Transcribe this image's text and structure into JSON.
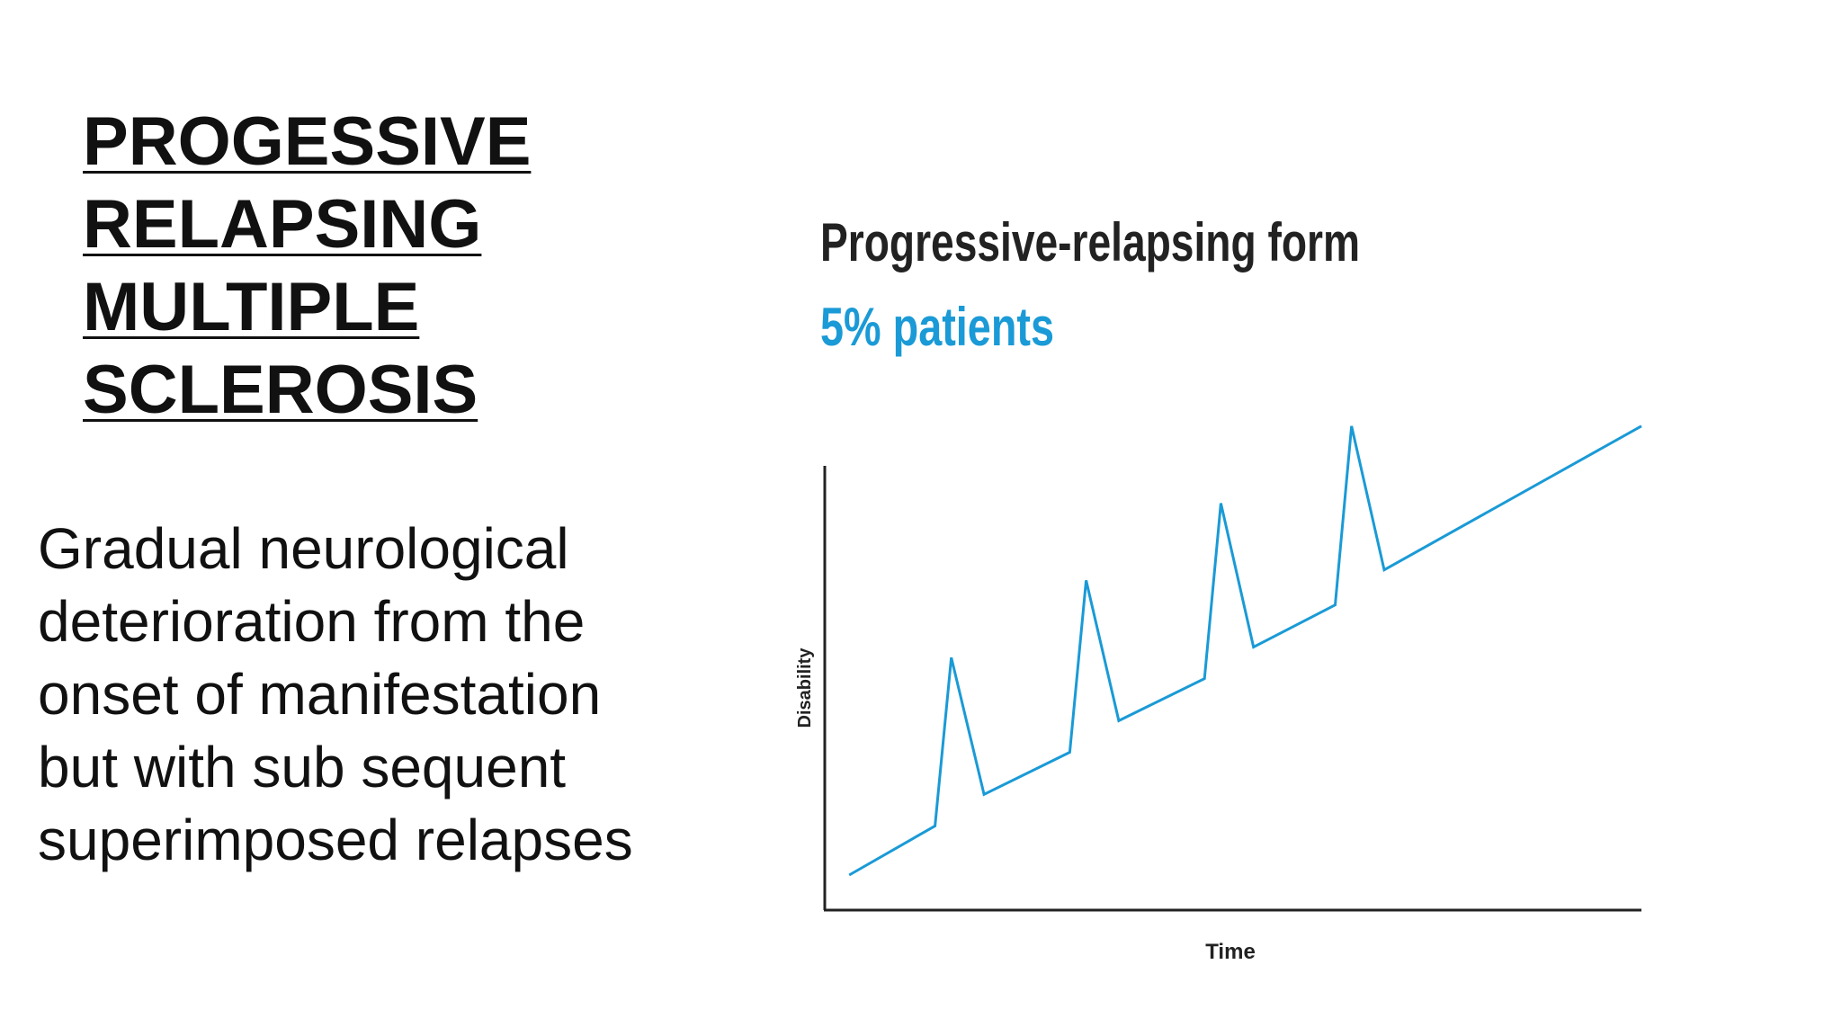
{
  "slide": {
    "title_lines": [
      "PROGESSIVE",
      "RELAPSING",
      "MULTIPLE",
      "SCLEROSIS"
    ],
    "body_lines": [
      "Gradual neurological",
      "deterioration from the",
      "onset of manifestation",
      "but with sub sequent",
      "superimposed relapses"
    ]
  },
  "colors": {
    "title_text": "#111111",
    "figure_title": "#222222",
    "subtitle_accent": "#1a9ad6",
    "line": "#1a9ad6",
    "axis": "#222222"
  },
  "chart_data": {
    "type": "line",
    "title": "Progressive-relapsing form",
    "subtitle": "5% patients",
    "xlabel": "Time",
    "ylabel": "Disability",
    "grid": false,
    "legend": "none",
    "axis_ticks": "none",
    "ylim": [
      0,
      100
    ],
    "xlim": [
      0,
      100
    ],
    "series": [
      {
        "points": [
          [
            3,
            10
          ],
          [
            13.5,
            24
          ],
          [
            15.5,
            72
          ],
          [
            19.5,
            33
          ],
          [
            30,
            45
          ],
          [
            32,
            94
          ],
          [
            36,
            54
          ],
          [
            46.5,
            66
          ],
          [
            48.5,
            116
          ],
          [
            52.5,
            75
          ],
          [
            62.5,
            87
          ],
          [
            64.5,
            138
          ],
          [
            68.5,
            97
          ],
          [
            100,
            138
          ]
        ]
      }
    ]
  }
}
